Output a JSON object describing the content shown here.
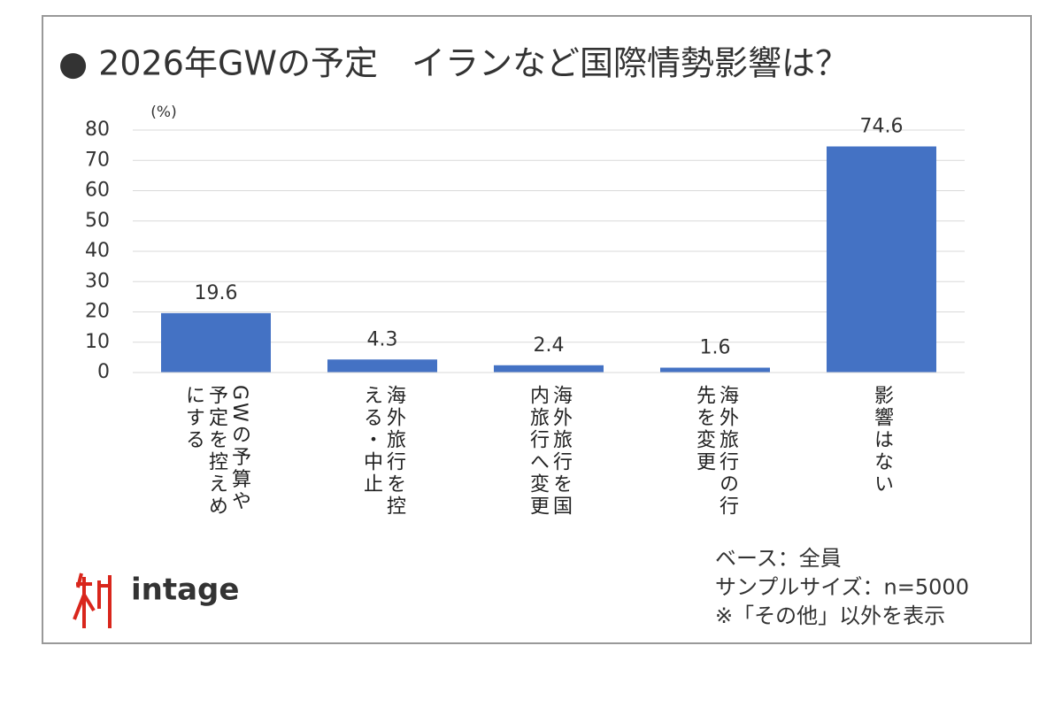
{
  "chart_data": {
    "type": "bar",
    "title": "● 2026年GWの予定　イランなど国際情勢影響は？",
    "y_axis_label": "(%)",
    "categories": [
      "GWの予算や予定を控えめにする",
      "海外旅行を控える・中止",
      "海外旅行を国内旅行へ変更",
      "海外旅行の行先を変更",
      "影響はない"
    ],
    "values": [
      19.6,
      4.3,
      2.4,
      1.6,
      74.6
    ],
    "color": "#4472c4",
    "ylim": [
      0,
      80
    ],
    "yticks": [
      0,
      10,
      20,
      30,
      40,
      50,
      60,
      70,
      80
    ],
    "grid": true,
    "notes": [
      "ベース：全員",
      "サンプルサイズ：n=5000",
      "※「その他」以外を表示"
    ],
    "logo": "intage"
  }
}
